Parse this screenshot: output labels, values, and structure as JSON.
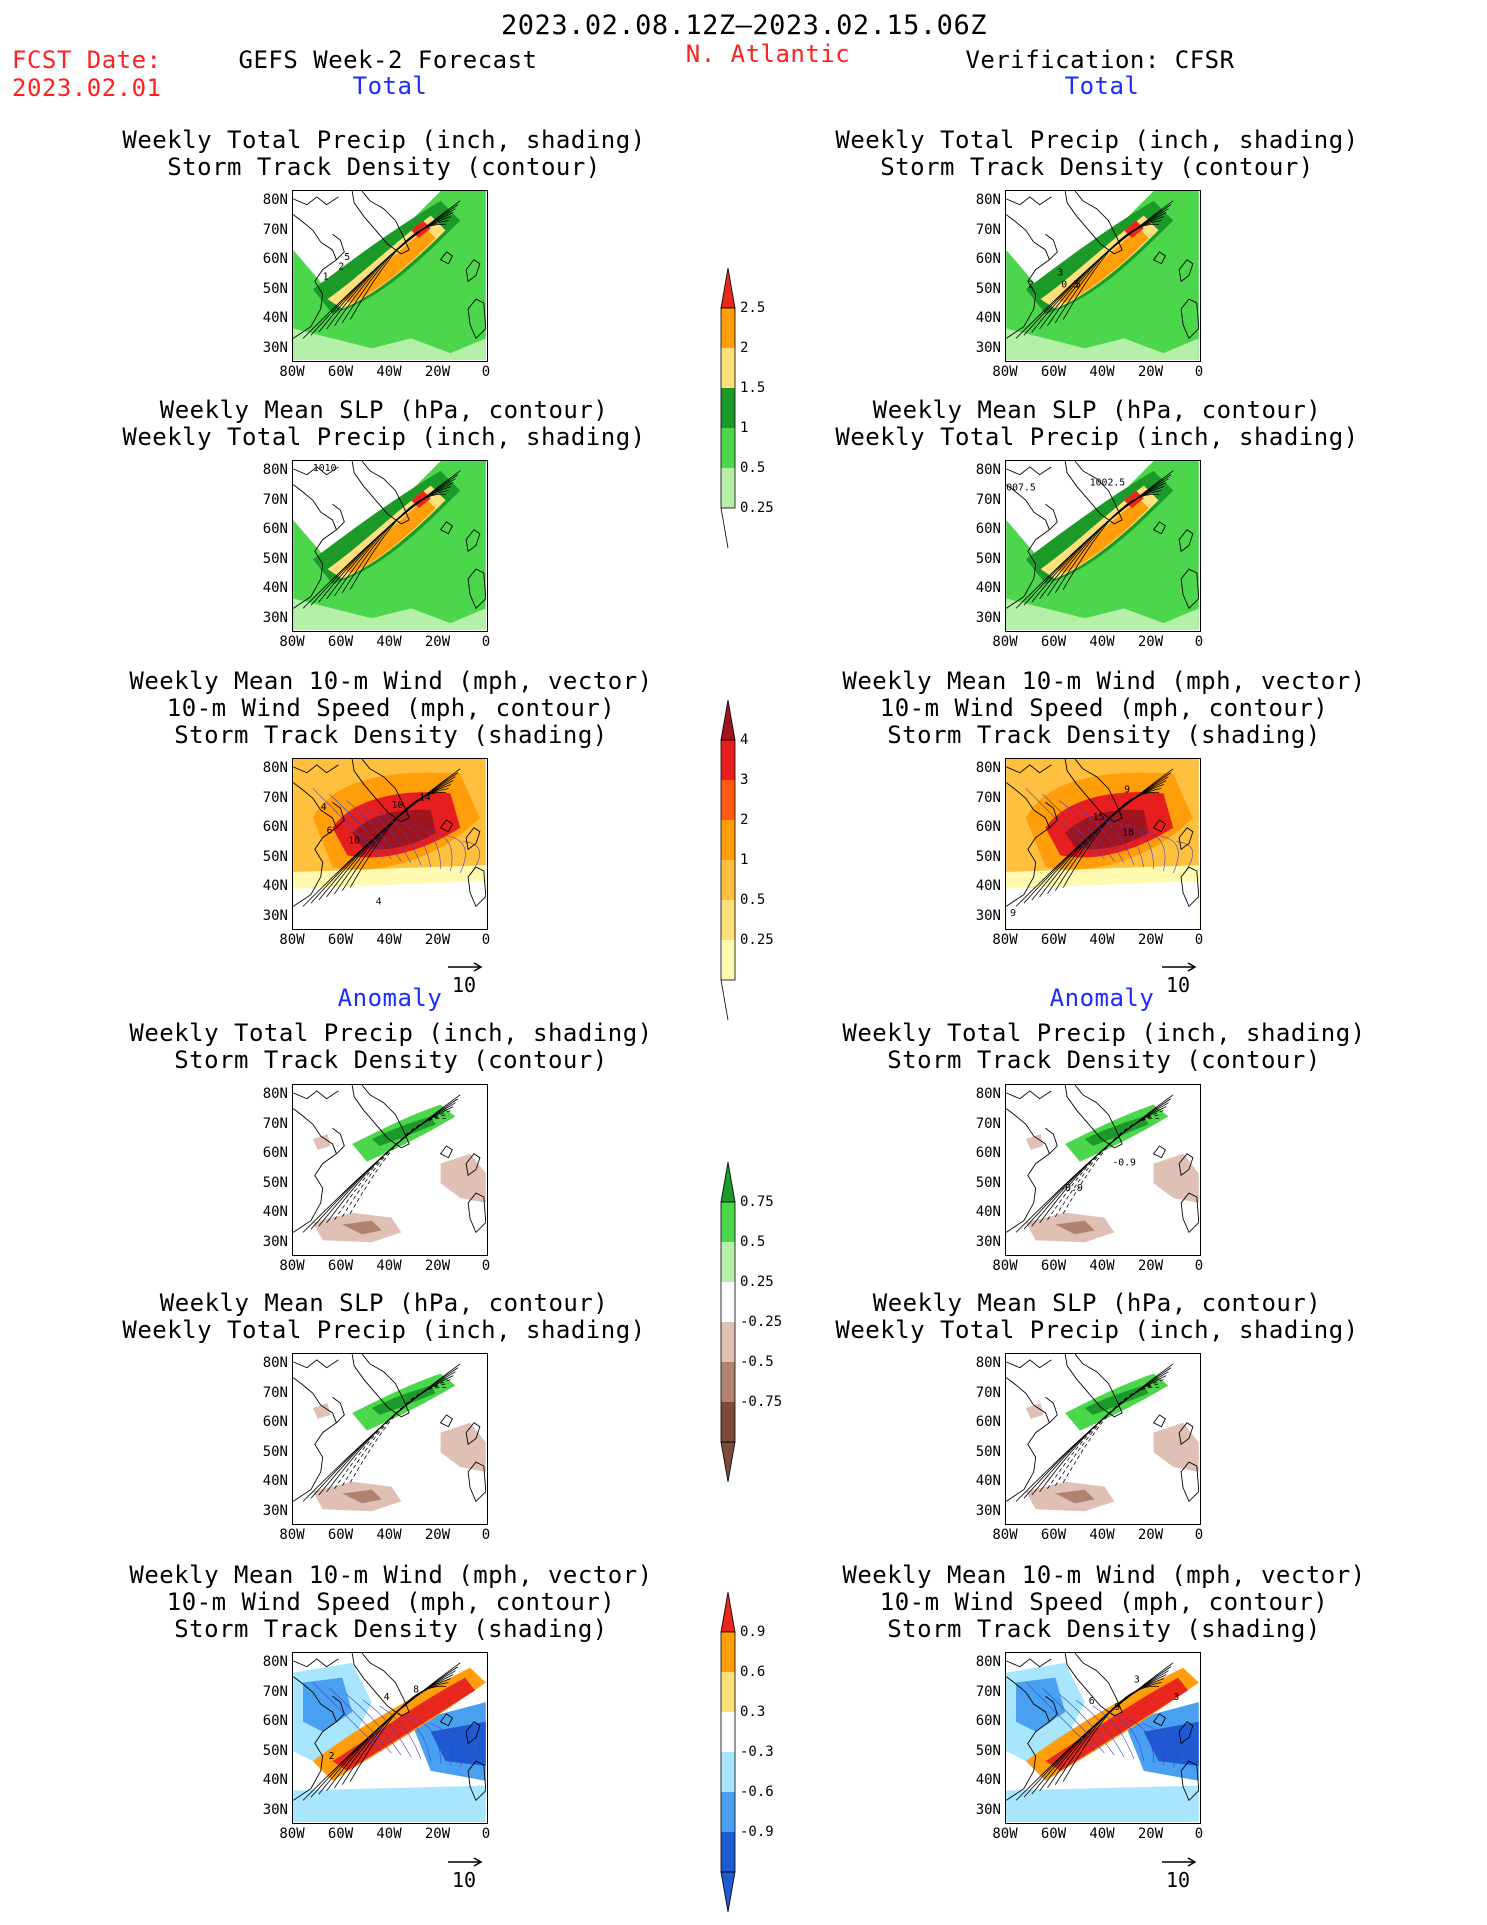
{
  "header": {
    "period": "2023.02.08.12Z–2023.02.15.06Z",
    "fcst_label": "FCST Date:",
    "fcst_date": "2023.02.01",
    "left_title": "GEFS Week-2 Forecast",
    "region": "N. Atlantic",
    "right_title": "Verification: CFSR"
  },
  "sections": {
    "total": "Total",
    "anomaly": "Anomaly"
  },
  "panel_titles": {
    "precip_storm": [
      "Weekly Total Precip (inch, shading)",
      "Storm Track Density (contour)"
    ],
    "slp_precip": [
      "Weekly Mean SLP (hPa, contour)",
      "Weekly Total Precip (inch, shading)"
    ],
    "wind_storm": [
      "Weekly Mean 10-m Wind (mph, vector)",
      "10-m Wind Speed (mph, contour)",
      "Storm Track Density (shading)"
    ]
  },
  "axes": {
    "lat_ticks": [
      "80N",
      "70N",
      "60N",
      "50N",
      "40N",
      "30N"
    ],
    "lon_ticks": [
      "80W",
      "60W",
      "40W",
      "20W",
      "0"
    ]
  },
  "vector_reference": "10",
  "colorbars": {
    "precip_total": {
      "labels": [
        "2.5",
        "2",
        "1.5",
        "1",
        "0.5",
        "0.25"
      ],
      "colors": [
        "#e8281e",
        "#ff9e0a",
        "#ffe07a",
        "#1b9a2a",
        "#4cd64c",
        "#b4f0a8"
      ]
    },
    "storm_total": {
      "labels": [
        "4",
        "3",
        "2",
        "1",
        "0.5",
        "0.25"
      ],
      "colors": [
        "#a0141e",
        "#e61e1e",
        "#ff5a14",
        "#ff9e0a",
        "#ffc040",
        "#ffe07a",
        "#fffab0"
      ]
    },
    "precip_anom": {
      "labels": [
        "0.75",
        "0.5",
        "0.25",
        "-0.25",
        "-0.5",
        "-0.75"
      ],
      "colors": [
        "#1b9a2a",
        "#4cd64c",
        "#b4f0a8",
        "#ffffff",
        "#e0bfb4",
        "#b08270",
        "#7a4a3a"
      ]
    },
    "storm_anom": {
      "labels": [
        "0.9",
        "0.6",
        "0.3",
        "-0.3",
        "-0.6",
        "-0.9"
      ],
      "colors": [
        "#e8281e",
        "#ff9e0a",
        "#ffe07a",
        "#ffffff",
        "#a8e6ff",
        "#4aa0f0",
        "#1e5ad2"
      ]
    }
  },
  "map_annotations": {
    "l1": [
      "5",
      "2",
      "1"
    ],
    "r1": [
      "3",
      "2",
      "0.5",
      "5"
    ],
    "l2": [
      "1010"
    ],
    "r2": [
      "1002.5",
      "007.5"
    ],
    "l3": [
      "14",
      "10",
      "4",
      "6",
      "10",
      "4"
    ],
    "r3": [
      "9",
      "15",
      "18",
      "9"
    ],
    "r4": [
      "-0.9",
      "-0.9"
    ],
    "l6": [
      "8",
      "4",
      "2"
    ],
    "r6": [
      "3",
      "6",
      "9",
      "3"
    ]
  }
}
